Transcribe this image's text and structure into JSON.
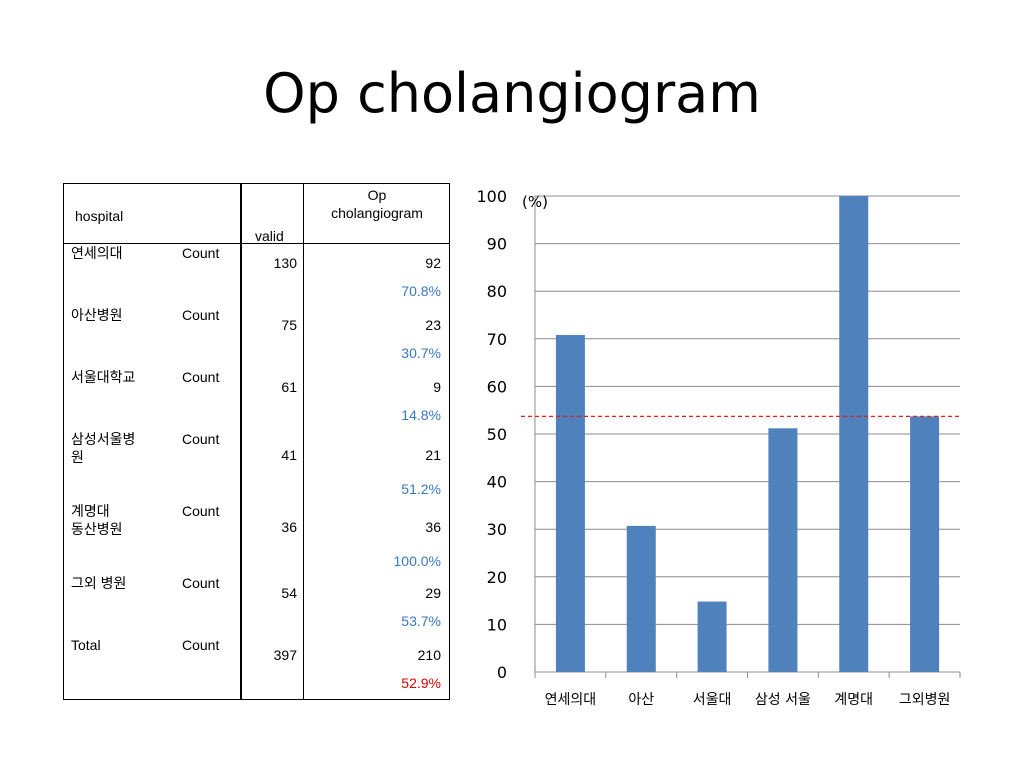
{
  "slide": {
    "title": "Op cholangiogram"
  },
  "table": {
    "headers": {
      "hospital": "hospital",
      "valid": "valid",
      "op": "Op\ncholangiogram"
    },
    "rows": [
      {
        "name": "연세의대",
        "stat": "Count",
        "valid": "130",
        "count": "92",
        "pct": "70.8%"
      },
      {
        "name": "아산병원",
        "stat": "Count",
        "valid": "75",
        "count": "23",
        "pct": "30.7%"
      },
      {
        "name": "서울대학교",
        "stat": "Count",
        "valid": "61",
        "count": "9",
        "pct": "14.8%"
      },
      {
        "name": "삼성서울병\n원",
        "stat": "Count",
        "valid": "41",
        "count": "21",
        "pct": "51.2%"
      },
      {
        "name": "계명대\n동산병원",
        "stat": "Count",
        "valid": "36",
        "count": "36",
        "pct": "100.0%"
      },
      {
        "name": "그외 병원",
        "stat": "Count",
        "valid": "54",
        "count": "29",
        "pct": "53.7%"
      }
    ],
    "total": {
      "name": "Total",
      "stat": "Count",
      "valid": "397",
      "count": "210",
      "pct": "52.9%"
    }
  },
  "chart_data": {
    "type": "bar",
    "categories": [
      "연세의대",
      "아산",
      "서울대",
      "삼성 서울",
      "계명대",
      "그외병원"
    ],
    "series": [
      {
        "values": [
          70.8,
          30.7,
          14.8,
          51.2,
          100.0,
          53.7
        ]
      }
    ],
    "reference_line": {
      "value": 53.7,
      "style": "dashed",
      "color": "#e02020"
    },
    "ylabel": "(%)",
    "ylim": [
      0,
      100
    ],
    "yticks": [
      0,
      10,
      20,
      30,
      40,
      50,
      60,
      70,
      80,
      90,
      100
    ],
    "grid": true,
    "legend": "none",
    "colors": {
      "bar": "#4f81bd",
      "grid": "#8c8c8c"
    }
  }
}
